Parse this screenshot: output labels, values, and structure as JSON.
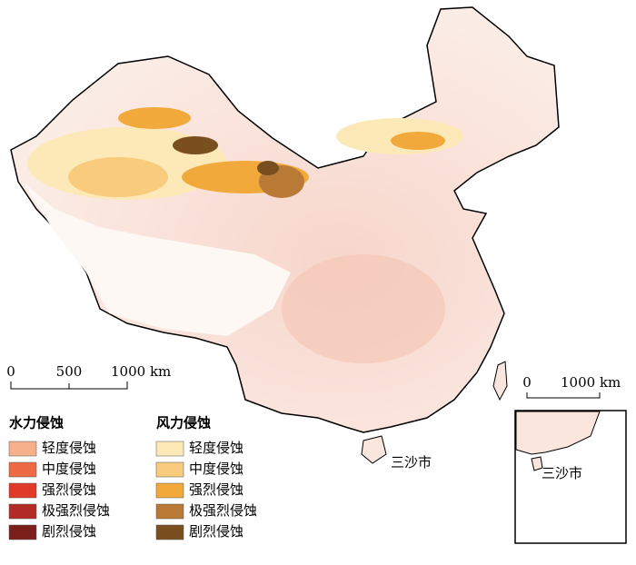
{
  "scale_bar": {
    "labels": [
      "0",
      "500",
      "1000 km"
    ]
  },
  "map_label": "三沙市",
  "inset": {
    "scale_labels": [
      "0",
      "1000 km"
    ],
    "label": "三沙市"
  },
  "legend": {
    "water": {
      "title": "水力侵蚀",
      "items": [
        {
          "label": "轻度侵蚀",
          "color": "#f6b08c"
        },
        {
          "label": "中度侵蚀",
          "color": "#ee6a44"
        },
        {
          "label": "强烈侵蚀",
          "color": "#e03a2a"
        },
        {
          "label": "极强烈侵蚀",
          "color": "#b32b25"
        },
        {
          "label": "剧烈侵蚀",
          "color": "#7a1f1a"
        }
      ]
    },
    "wind": {
      "title": "风力侵蚀",
      "items": [
        {
          "label": "轻度侵蚀",
          "color": "#fde9b8"
        },
        {
          "label": "中度侵蚀",
          "color": "#f8cc7c"
        },
        {
          "label": "强烈侵蚀",
          "color": "#f2a93c"
        },
        {
          "label": "极强烈侵蚀",
          "color": "#b97a35"
        },
        {
          "label": "剧烈侵蚀",
          "color": "#7a4f1f"
        }
      ]
    }
  }
}
